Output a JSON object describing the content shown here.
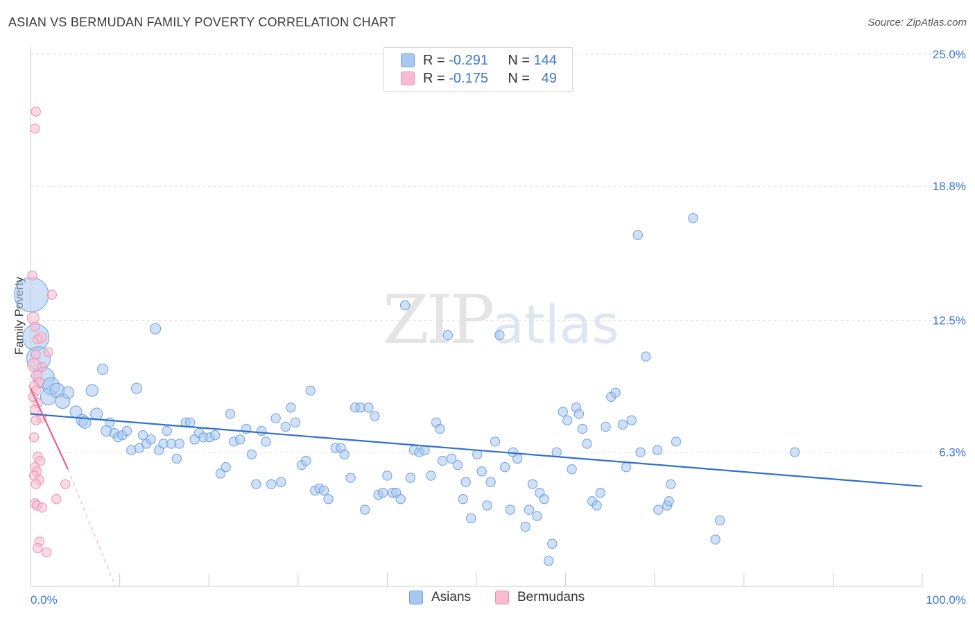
{
  "title": "ASIAN VS BERMUDAN FAMILY POVERTY CORRELATION CHART",
  "source": "Source: ZipAtlas.com",
  "watermark": {
    "zip": "ZIP",
    "atlas": "atlas"
  },
  "legend": {
    "rows": [
      {
        "r_label": "R =",
        "r_value": "-0.291",
        "n_label": "N =",
        "n_value": "144"
      },
      {
        "r_label": "R =",
        "r_value": "-0.175",
        "n_label": "N =",
        "n_value": "49"
      }
    ]
  },
  "bottom_legend": {
    "asians": "Asians",
    "bermudans": "Bermudans"
  },
  "colors": {
    "asian_fill": "#a9c8f0",
    "asian_stroke": "#6c9fe0",
    "asian_line": "#2d6fcf",
    "bermudan_fill": "#f7bcd0",
    "bermudan_stroke": "#ee8fb0",
    "bermudan_line": "#e8608f",
    "tick_label": "#3b78d0"
  },
  "chart_data": {
    "type": "scatter",
    "title": "ASIAN VS BERMUDAN FAMILY POVERTY CORRELATION CHART",
    "xlabel": "",
    "ylabel": "Family Poverty",
    "xlim": [
      0,
      100
    ],
    "ylim": [
      0,
      25.0
    ],
    "y_ticks": [
      6.3,
      12.5,
      18.8,
      25.0
    ],
    "y_tick_labels": [
      "6.3%",
      "12.5%",
      "18.8%",
      "25.0%"
    ],
    "x_tick_labels": [
      "0.0%",
      "100.0%"
    ],
    "series": [
      {
        "name": "Asians",
        "R": -0.291,
        "N": 144,
        "trend": {
          "x": [
            0,
            100
          ],
          "y": [
            8.1,
            4.7
          ]
        },
        "points": [
          [
            0.1,
            13.7,
            2.6
          ],
          [
            0.6,
            11.7,
            2.0
          ],
          [
            0.9,
            10.7,
            1.8
          ],
          [
            1.5,
            9.8,
            1.6
          ],
          [
            2.3,
            9.4,
            1.3
          ],
          [
            2.0,
            8.9,
            1.2
          ],
          [
            3.0,
            9.2,
            1.1
          ],
          [
            3.6,
            8.7,
            1.1
          ],
          [
            4.2,
            9.1,
            0.9
          ],
          [
            5.1,
            8.2,
            0.9
          ],
          [
            5.8,
            7.8,
            0.9
          ],
          [
            6.1,
            7.7,
            0.9
          ],
          [
            6.9,
            9.2,
            0.9
          ],
          [
            7.4,
            8.1,
            0.9
          ],
          [
            8.1,
            10.2,
            0.8
          ],
          [
            8.5,
            7.3,
            0.8
          ],
          [
            8.9,
            7.7,
            0.7
          ],
          [
            9.4,
            7.2,
            0.7
          ],
          [
            9.8,
            7.0,
            0.7
          ],
          [
            10.3,
            7.1,
            0.7
          ],
          [
            10.8,
            7.3,
            0.7
          ],
          [
            11.3,
            6.4,
            0.7
          ],
          [
            11.9,
            9.3,
            0.8
          ],
          [
            12.2,
            6.5,
            0.7
          ],
          [
            12.6,
            7.1,
            0.7
          ],
          [
            13.0,
            6.7,
            0.7
          ],
          [
            13.5,
            6.9,
            0.7
          ],
          [
            14.0,
            12.1,
            0.8
          ],
          [
            14.4,
            6.4,
            0.7
          ],
          [
            14.9,
            6.7,
            0.7
          ],
          [
            15.3,
            7.3,
            0.7
          ],
          [
            15.8,
            6.7,
            0.7
          ],
          [
            16.4,
            6.0,
            0.7
          ],
          [
            16.7,
            6.7,
            0.7
          ],
          [
            17.4,
            7.7,
            0.7
          ],
          [
            17.9,
            7.7,
            0.7
          ],
          [
            18.4,
            6.9,
            0.7
          ],
          [
            18.9,
            7.2,
            0.7
          ],
          [
            19.4,
            7.0,
            0.7
          ],
          [
            20.1,
            7.0,
            0.7
          ],
          [
            20.7,
            7.1,
            0.7
          ],
          [
            21.3,
            5.3,
            0.7
          ],
          [
            21.9,
            5.6,
            0.7
          ],
          [
            22.4,
            8.1,
            0.7
          ],
          [
            22.8,
            6.8,
            0.7
          ],
          [
            23.5,
            6.9,
            0.7
          ],
          [
            24.2,
            7.4,
            0.7
          ],
          [
            24.8,
            6.2,
            0.7
          ],
          [
            25.3,
            4.8,
            0.7
          ],
          [
            25.9,
            7.3,
            0.7
          ],
          [
            26.4,
            6.8,
            0.7
          ],
          [
            27.0,
            4.8,
            0.7
          ],
          [
            27.5,
            7.9,
            0.7
          ],
          [
            28.1,
            4.9,
            0.7
          ],
          [
            28.6,
            7.5,
            0.7
          ],
          [
            29.2,
            8.4,
            0.7
          ],
          [
            29.7,
            7.7,
            0.7
          ],
          [
            30.4,
            5.7,
            0.7
          ],
          [
            30.9,
            5.9,
            0.7
          ],
          [
            31.4,
            9.2,
            0.7
          ],
          [
            31.9,
            4.5,
            0.7
          ],
          [
            32.4,
            4.6,
            0.7
          ],
          [
            32.9,
            4.5,
            0.7
          ],
          [
            33.4,
            4.1,
            0.7
          ],
          [
            34.2,
            6.5,
            0.7
          ],
          [
            34.8,
            6.5,
            0.7
          ],
          [
            35.2,
            6.2,
            0.7
          ],
          [
            35.9,
            5.1,
            0.7
          ],
          [
            36.4,
            8.4,
            0.7
          ],
          [
            37.0,
            8.4,
            0.7
          ],
          [
            37.5,
            3.6,
            0.7
          ],
          [
            37.9,
            8.4,
            0.7
          ],
          [
            38.6,
            8.0,
            0.7
          ],
          [
            39.0,
            4.3,
            0.7
          ],
          [
            39.5,
            4.4,
            0.7
          ],
          [
            40.0,
            5.2,
            0.7
          ],
          [
            40.6,
            4.4,
            0.7
          ],
          [
            41.0,
            4.4,
            0.7
          ],
          [
            41.5,
            4.1,
            0.7
          ],
          [
            42.0,
            13.2,
            0.7
          ],
          [
            42.6,
            5.1,
            0.7
          ],
          [
            43.0,
            6.4,
            0.7
          ],
          [
            43.6,
            6.3,
            0.7
          ],
          [
            44.2,
            6.4,
            0.7
          ],
          [
            44.9,
            5.2,
            0.7
          ],
          [
            45.5,
            7.7,
            0.7
          ],
          [
            45.9,
            7.4,
            0.7
          ],
          [
            46.2,
            5.9,
            0.7
          ],
          [
            46.8,
            11.8,
            0.7
          ],
          [
            47.2,
            6.0,
            0.7
          ],
          [
            47.9,
            5.7,
            0.7
          ],
          [
            48.5,
            4.1,
            0.7
          ],
          [
            48.8,
            4.9,
            0.7
          ],
          [
            49.4,
            3.2,
            0.7
          ],
          [
            50.1,
            6.2,
            0.7
          ],
          [
            50.6,
            5.4,
            0.7
          ],
          [
            51.2,
            3.8,
            0.7
          ],
          [
            51.6,
            4.9,
            0.7
          ],
          [
            52.1,
            6.8,
            0.7
          ],
          [
            52.6,
            11.8,
            0.7
          ],
          [
            53.2,
            5.6,
            0.7
          ],
          [
            53.8,
            3.6,
            0.7
          ],
          [
            54.1,
            6.3,
            0.7
          ],
          [
            54.6,
            6.0,
            0.7
          ],
          [
            55.5,
            2.8,
            0.7
          ],
          [
            55.9,
            3.6,
            0.7
          ],
          [
            56.3,
            4.8,
            0.7
          ],
          [
            56.8,
            3.3,
            0.7
          ],
          [
            57.1,
            4.4,
            0.7
          ],
          [
            57.6,
            4.1,
            0.7
          ],
          [
            58.1,
            1.2,
            0.7
          ],
          [
            58.5,
            2.0,
            0.7
          ],
          [
            59.0,
            6.3,
            0.7
          ],
          [
            59.7,
            8.2,
            0.7
          ],
          [
            60.2,
            7.8,
            0.7
          ],
          [
            60.7,
            5.5,
            0.7
          ],
          [
            61.2,
            8.4,
            0.7
          ],
          [
            61.5,
            8.1,
            0.7
          ],
          [
            61.9,
            7.4,
            0.7
          ],
          [
            62.4,
            6.7,
            0.7
          ],
          [
            63.0,
            4.0,
            0.7
          ],
          [
            63.5,
            3.8,
            0.7
          ],
          [
            63.9,
            4.4,
            0.7
          ],
          [
            64.5,
            7.5,
            0.7
          ],
          [
            65.1,
            8.9,
            0.7
          ],
          [
            65.6,
            9.1,
            0.7
          ],
          [
            66.4,
            7.6,
            0.7
          ],
          [
            66.8,
            5.6,
            0.7
          ],
          [
            67.4,
            7.8,
            0.7
          ],
          [
            68.1,
            16.5,
            0.7
          ],
          [
            68.4,
            6.3,
            0.7
          ],
          [
            69.0,
            10.8,
            0.7
          ],
          [
            70.3,
            6.4,
            0.7
          ],
          [
            70.4,
            3.6,
            0.7
          ],
          [
            71.4,
            3.8,
            0.7
          ],
          [
            71.6,
            4.0,
            0.7
          ],
          [
            71.8,
            4.8,
            0.7
          ],
          [
            72.4,
            6.8,
            0.7
          ],
          [
            74.3,
            17.3,
            0.7
          ],
          [
            76.8,
            2.2,
            0.7
          ],
          [
            77.3,
            3.1,
            0.7
          ],
          [
            85.7,
            6.3,
            0.7
          ]
        ]
      },
      {
        "name": "Bermudans",
        "R": -0.175,
        "N": 49,
        "trend": {
          "x": [
            0,
            4.2
          ],
          "y": [
            9.3,
            5.5
          ]
        },
        "trend_extension": {
          "x": [
            4.2,
            9.5
          ],
          "y": [
            5.5,
            0.0
          ]
        },
        "points": [
          [
            0.6,
            22.3,
            0.7
          ],
          [
            0.5,
            21.5,
            0.7
          ],
          [
            0.2,
            14.6,
            0.7
          ],
          [
            2.4,
            13.7,
            0.7
          ],
          [
            0.3,
            12.6,
            0.9
          ],
          [
            0.5,
            12.2,
            0.7
          ],
          [
            0.8,
            11.6,
            0.7
          ],
          [
            1.2,
            11.7,
            0.8
          ],
          [
            2.0,
            11.0,
            0.7
          ],
          [
            0.6,
            10.9,
            0.7
          ],
          [
            0.4,
            10.4,
            1.0
          ],
          [
            1.3,
            10.3,
            0.7
          ],
          [
            0.7,
            9.9,
            0.8
          ],
          [
            1.0,
            9.6,
            0.7
          ],
          [
            0.4,
            9.4,
            0.7
          ],
          [
            0.6,
            9.2,
            0.7
          ],
          [
            0.3,
            8.9,
            0.7
          ],
          [
            0.8,
            8.6,
            0.7
          ],
          [
            0.5,
            8.3,
            0.7
          ],
          [
            1.2,
            7.9,
            0.7
          ],
          [
            0.6,
            7.8,
            0.7
          ],
          [
            0.4,
            7.0,
            0.7
          ],
          [
            0.8,
            6.1,
            0.7
          ],
          [
            1.1,
            5.9,
            0.7
          ],
          [
            0.5,
            5.6,
            0.7
          ],
          [
            0.7,
            5.4,
            0.7
          ],
          [
            0.4,
            5.2,
            0.7
          ],
          [
            1.0,
            5.0,
            0.7
          ],
          [
            0.6,
            4.8,
            0.7
          ],
          [
            3.9,
            4.8,
            0.7
          ],
          [
            2.9,
            4.1,
            0.7
          ],
          [
            0.5,
            3.9,
            0.7
          ],
          [
            0.7,
            3.8,
            0.7
          ],
          [
            1.3,
            3.7,
            0.7
          ],
          [
            1.0,
            2.1,
            0.7
          ],
          [
            0.8,
            1.8,
            0.7
          ],
          [
            1.8,
            1.6,
            0.7
          ]
        ]
      }
    ]
  }
}
